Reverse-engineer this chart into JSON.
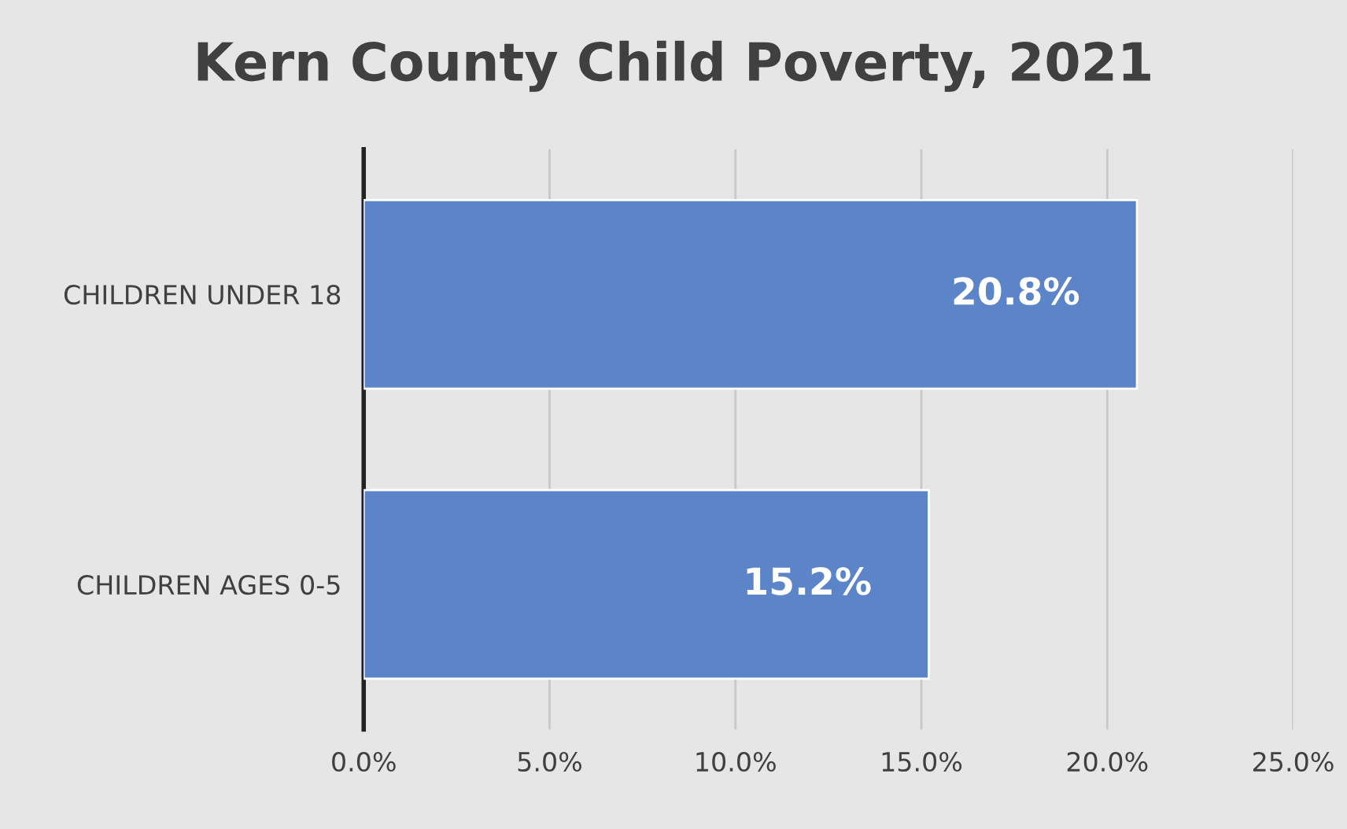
{
  "chart_data": {
    "type": "bar",
    "orientation": "horizontal",
    "title": "Kern County Child Poverty, 2021",
    "categories": [
      "CHILDREN UNDER 18",
      "CHILDREN AGES 0-5"
    ],
    "values": [
      20.8,
      15.2
    ],
    "color": "#5b84c9",
    "value_labels": [
      "20.8%",
      "15.2%"
    ],
    "xlim": [
      0,
      25
    ],
    "xticks": [
      {
        "value": 0,
        "label": "0.0%"
      },
      {
        "value": 5,
        "label": "5.0%"
      },
      {
        "value": 10,
        "label": "10.0%"
      },
      {
        "value": 15,
        "label": "15.0%"
      },
      {
        "value": 20,
        "label": "20.0%"
      },
      {
        "value": 25,
        "label": "25.0%"
      }
    ],
    "grid": "x"
  }
}
